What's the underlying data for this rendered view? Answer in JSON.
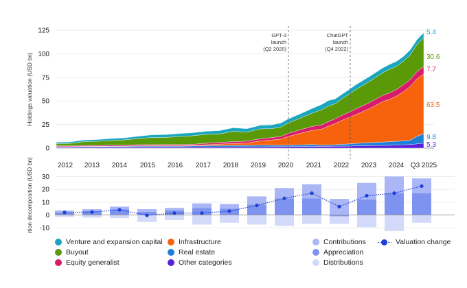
{
  "colors": {
    "vc": "#1ba6bf",
    "buyout": "#5a9a08",
    "equity": "#d81b6a",
    "infra": "#f7630c",
    "realestate": "#1e7fd8",
    "other": "#5a1fd8",
    "contributions": "#aab6f5",
    "appreciation": "#7d93ef",
    "distributions": "#d3daf9",
    "valuation": "#1f3fd6"
  },
  "chart_data": [
    {
      "type": "area",
      "stacked": true,
      "ylabel": "Holdings valuation (USD bn)",
      "xlabel": "",
      "ylim": [
        0,
        125
      ],
      "yticks": [
        0,
        25,
        50,
        75,
        100,
        125
      ],
      "xticks": [
        "2012",
        "2013",
        "2014",
        "2015",
        "2016",
        "2017",
        "2018",
        "2019",
        "2020",
        "2021",
        "2022",
        "2023",
        "2024",
        "Q3 2025"
      ],
      "grid": true,
      "x": [
        2012.0,
        2012.5,
        2013.0,
        2013.5,
        2014.0,
        2014.5,
        2015.0,
        2015.5,
        2016.0,
        2016.5,
        2017.0,
        2017.5,
        2018.0,
        2018.5,
        2019.0,
        2019.5,
        2019.9,
        2020.25,
        2020.5,
        2021.0,
        2021.4,
        2021.75,
        2022.0,
        2022.25,
        2022.5,
        2022.75,
        2023.0,
        2023.5,
        2024.0,
        2024.25,
        2024.5,
        2024.75,
        2025.0,
        2025.25,
        2025.5
      ],
      "series": [
        {
          "name": "Other categories",
          "key": "other",
          "values": [
            0.8,
            0.8,
            0.9,
            0.9,
            1.0,
            1.0,
            1.1,
            1.1,
            1.1,
            1.1,
            1.2,
            1.2,
            1.3,
            1.3,
            1.4,
            1.4,
            1.5,
            1.5,
            1.6,
            1.7,
            1.8,
            1.8,
            1.9,
            2.0,
            2.1,
            2.2,
            2.4,
            2.6,
            2.8,
            3.0,
            3.2,
            3.5,
            3.8,
            4.5,
            5.3
          ]
        },
        {
          "name": "Real estate",
          "key": "realestate",
          "values": [
            0.6,
            0.6,
            0.7,
            0.7,
            0.8,
            0.8,
            0.9,
            1.0,
            1.0,
            1.0,
            1.1,
            1.4,
            1.5,
            1.5,
            1.5,
            1.7,
            1.6,
            1.5,
            1.6,
            1.8,
            2.0,
            1.4,
            1.4,
            1.6,
            1.9,
            2.2,
            2.6,
            3.2,
            3.6,
            3.8,
            4.0,
            4.2,
            4.5,
            8.0,
            9.8
          ]
        },
        {
          "name": "Infrastructure",
          "key": "infra",
          "values": [
            0.2,
            0.2,
            0.3,
            0.3,
            0.3,
            0.4,
            0.5,
            0.5,
            0.5,
            0.5,
            0.5,
            1.0,
            1.5,
            2.0,
            2.5,
            4.5,
            5.5,
            6.5,
            9.0,
            12.5,
            15.0,
            17.0,
            20.0,
            22.5,
            25.5,
            28.0,
            30.5,
            36.0,
            43.0,
            45.0,
            48.0,
            52.0,
            57.0,
            61.0,
            63.5
          ]
        },
        {
          "name": "Equity generalist",
          "key": "equity",
          "values": [
            0.8,
            0.8,
            0.9,
            0.9,
            1.0,
            1.0,
            1.1,
            1.1,
            1.2,
            1.2,
            1.3,
            1.5,
            1.7,
            2.0,
            2.0,
            2.3,
            2.5,
            2.8,
            3.2,
            3.8,
            4.2,
            4.5,
            4.8,
            5.0,
            5.3,
            5.6,
            6.0,
            6.3,
            6.6,
            6.8,
            7.0,
            7.2,
            7.4,
            7.6,
            7.7
          ]
        },
        {
          "name": "Buyout",
          "key": "buyout",
          "values": [
            2.3,
            2.5,
            4.0,
            4.5,
            5.0,
            5.5,
            6.5,
            7.5,
            7.5,
            8.5,
            9.0,
            9.5,
            9.0,
            11.0,
            9.5,
            10.5,
            9.5,
            10.0,
            11.0,
            12.5,
            14.0,
            16.0,
            16.5,
            16.0,
            17.5,
            19.0,
            20.5,
            22.5,
            24.0,
            25.0,
            24.5,
            25.0,
            26.0,
            28.5,
            30.6
          ]
        },
        {
          "name": "Venture and expansion capital",
          "key": "vc",
          "values": [
            1.5,
            1.6,
            1.7,
            1.8,
            2.0,
            2.1,
            2.4,
            2.8,
            3.0,
            3.1,
            3.2,
            3.3,
            3.5,
            3.8,
            3.7,
            3.8,
            4.0,
            4.2,
            4.3,
            4.5,
            5.0,
            5.5,
            5.8,
            5.0,
            4.8,
            4.9,
            5.0,
            5.1,
            5.1,
            5.2,
            5.2,
            5.2,
            5.3,
            5.3,
            5.4
          ]
        }
      ],
      "end_labels": [
        {
          "key": "vc",
          "text": "5.4"
        },
        {
          "key": "buyout",
          "text": "30.6"
        },
        {
          "key": "equity",
          "text": "7.7"
        },
        {
          "key": "infra",
          "text": "63.5"
        },
        {
          "key": "realestate",
          "text": "9.8"
        },
        {
          "key": "other",
          "text": "5.3"
        }
      ],
      "annotations": [
        {
          "x": 2020.25,
          "lines": [
            "GPT-3",
            "launch",
            "(Q2 2020)"
          ]
        },
        {
          "x": 2022.75,
          "lines": [
            "ChatGPT",
            "launch",
            "(Q4 2022)"
          ]
        }
      ]
    },
    {
      "type": "bar",
      "stacked": true,
      "ylabel": "Valuation decomposition (USD bn)",
      "ylim": [
        -12,
        32
      ],
      "yticks": [
        -10,
        0,
        10,
        20,
        30
      ],
      "grid": true,
      "categories": [
        "2012",
        "2013",
        "2014",
        "2015",
        "2016",
        "2017",
        "2018",
        "2019",
        "2020",
        "2021",
        "2022",
        "2023",
        "2024",
        "Q3 2025"
      ],
      "series": [
        {
          "name": "Appreciation",
          "key": "appreciation",
          "values": [
            2,
            3,
            4.5,
            2.5,
            3.5,
            5.5,
            5,
            8,
            13,
            13,
            -1,
            12,
            17,
            17
          ]
        },
        {
          "name": "Contributions",
          "key": "contributions",
          "values": [
            1.5,
            1.5,
            2,
            2,
            2,
            3.5,
            3.5,
            6.5,
            8,
            11,
            12.5,
            13,
            13,
            11.5
          ]
        },
        {
          "name": "Distributions",
          "key": "distributions",
          "values": [
            -1.5,
            -2,
            -2.5,
            -5.5,
            -4,
            -7.5,
            -6,
            -7.5,
            -8.5,
            -7,
            -7,
            -9.5,
            -12.5,
            -6
          ]
        },
        {
          "name": "Valuation change",
          "key": "valuation",
          "type": "line",
          "values": [
            2,
            2.3,
            4,
            -0.3,
            1.5,
            1.5,
            3,
            7.5,
            13,
            17,
            6.5,
            15,
            17,
            22.5
          ]
        }
      ]
    }
  ],
  "legend": {
    "left": [
      {
        "key": "vc",
        "label": "Venture and expansion capital"
      },
      {
        "key": "buyout",
        "label": "Buyout"
      },
      {
        "key": "equity",
        "label": "Equity generalist"
      }
    ],
    "mid": [
      {
        "key": "infra",
        "label": "Infrastructure"
      },
      {
        "key": "realestate",
        "label": "Real estate"
      },
      {
        "key": "other",
        "label": "Other categories"
      }
    ],
    "right": [
      {
        "key": "contributions",
        "label": "Contributions"
      },
      {
        "key": "appreciation",
        "label": "Appreciation"
      },
      {
        "key": "distributions",
        "label": "Distributions"
      }
    ],
    "line": {
      "key": "valuation",
      "label": "Valuation change"
    }
  }
}
